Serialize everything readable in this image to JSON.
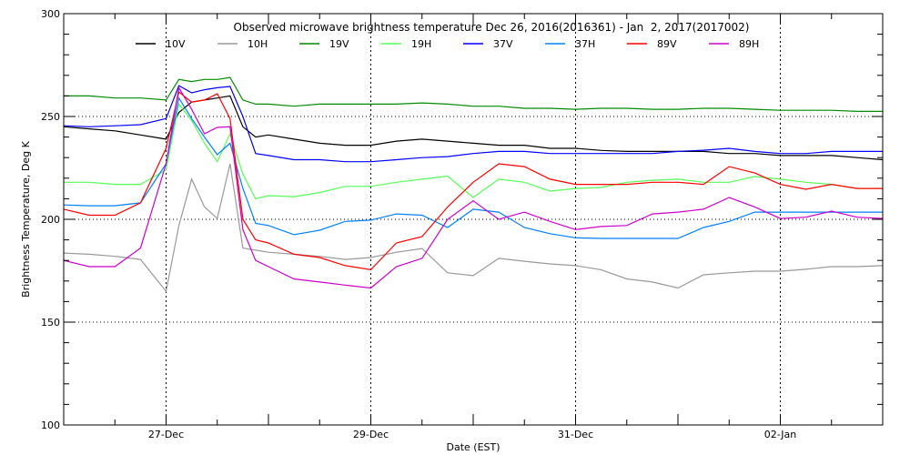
{
  "chart_data": {
    "type": "line",
    "title": "Observed microwave brightness temperature Dec 26, 2016(2016361) - Jan  2, 2017(2017002)",
    "xlabel": "Date (EST)",
    "ylabel": "Brightness Temperature, Deg K",
    "ylim": [
      100,
      300
    ],
    "yticks": [
      100,
      150,
      200,
      250,
      300
    ],
    "xlim": [
      "2016-12-26 00:00",
      "2017-01-03 00:00"
    ],
    "xtick_labels": [
      {
        "date": "2016-12-27 00:00",
        "label": "27-Dec"
      },
      {
        "date": "2016-12-29 00:00",
        "label": "29-Dec"
      },
      {
        "date": "2016-12-31 00:00",
        "label": "31-Dec"
      },
      {
        "date": "2017-01-02 00:00",
        "label": "02-Jan"
      }
    ],
    "grid": "dotted at 150, 200, 250 and at labeled dates",
    "legend_placement": "top",
    "x": [
      "2016-12-26 00:00",
      "2016-12-26 06:00",
      "2016-12-26 12:00",
      "2016-12-26 18:00",
      "2016-12-27 00:00",
      "2016-12-27 03:00",
      "2016-12-27 06:00",
      "2016-12-27 09:00",
      "2016-12-27 12:00",
      "2016-12-27 15:00",
      "2016-12-27 18:00",
      "2016-12-27 21:00",
      "2016-12-28 00:00",
      "2016-12-28 06:00",
      "2016-12-28 12:00",
      "2016-12-28 18:00",
      "2016-12-29 00:00",
      "2016-12-29 06:00",
      "2016-12-29 12:00",
      "2016-12-29 18:00",
      "2016-12-30 00:00",
      "2016-12-30 06:00",
      "2016-12-30 12:00",
      "2016-12-30 18:00",
      "2016-12-31 00:00",
      "2016-12-31 06:00",
      "2016-12-31 12:00",
      "2016-12-31 18:00",
      "2017-01-01 00:00",
      "2017-01-01 06:00",
      "2017-01-01 12:00",
      "2017-01-01 18:00",
      "2017-01-02 00:00",
      "2017-01-02 06:00",
      "2017-01-02 12:00",
      "2017-01-02 18:00",
      "2017-01-03 00:00"
    ],
    "series": [
      {
        "name": "10V",
        "color": "#000000",
        "values": [
          245,
          244,
          243,
          241,
          239,
          252,
          257,
          258,
          259,
          260,
          245,
          240,
          241,
          239,
          237,
          236,
          236,
          238,
          239,
          238,
          237,
          236,
          236,
          234.5,
          234.5,
          233.5,
          233,
          233,
          233,
          233,
          232,
          232,
          231,
          231,
          231,
          230,
          229
        ]
      },
      {
        "name": "10H",
        "color": "#999999",
        "values": [
          183.6,
          183,
          182,
          180.5,
          165,
          197,
          219.5,
          206,
          200.4,
          227,
          186,
          185,
          184,
          183,
          182,
          180.5,
          181.4,
          184,
          185.8,
          174,
          172.6,
          181,
          179.6,
          178.3,
          177.5,
          175.5,
          171,
          169.5,
          166.6,
          173,
          174,
          174.8,
          174.8,
          175.7,
          177,
          177,
          177.5
        ]
      },
      {
        "name": "19V",
        "color": "#008c00",
        "values": [
          260,
          260,
          259,
          259,
          258,
          268,
          267,
          268,
          268,
          269,
          258,
          256,
          256,
          255,
          256,
          256,
          256,
          256,
          256.6,
          256,
          255,
          255,
          254,
          254,
          253.5,
          254,
          254,
          253.5,
          253.5,
          254,
          254,
          253.5,
          253,
          253,
          253,
          252.5,
          252.5
        ]
      },
      {
        "name": "19H",
        "color": "#55ff55",
        "values": [
          218,
          218,
          217,
          217,
          224,
          256,
          248,
          237,
          228,
          241.6,
          222,
          210,
          211.5,
          211,
          213,
          216,
          216,
          218,
          219.5,
          221,
          210.6,
          219.5,
          218,
          213.7,
          215,
          215.5,
          218,
          219,
          219.5,
          218,
          218,
          220.8,
          219.5,
          218,
          217,
          215,
          215
        ]
      },
      {
        "name": "37V",
        "color": "#0000ff",
        "values": [
          245.5,
          245,
          245.5,
          246,
          249,
          265,
          261.5,
          263,
          264,
          264.6,
          250,
          232,
          231,
          229,
          229,
          228,
          228,
          229,
          230,
          230.5,
          232,
          233,
          233,
          232,
          232,
          232,
          232,
          232,
          233,
          233.6,
          234.5,
          233,
          232,
          232,
          233,
          233,
          233
        ]
      },
      {
        "name": "37H",
        "color": "#0080ff",
        "values": [
          207,
          206.6,
          206.6,
          208,
          227,
          259,
          249,
          240,
          231.4,
          237,
          215,
          198,
          197,
          192.5,
          194.7,
          199,
          199.6,
          202.6,
          202,
          196,
          204.9,
          203.5,
          196,
          193,
          191,
          190.7,
          190.7,
          190.7,
          190.7,
          196,
          199,
          203.5,
          203.5,
          203.5,
          203.5,
          203.5,
          203.5
        ]
      },
      {
        "name": "89V",
        "color": "#ff0000",
        "values": [
          204.9,
          202,
          202,
          208,
          234.5,
          262,
          257,
          258,
          261,
          249,
          200,
          190,
          188.5,
          183,
          181.4,
          177.5,
          175.5,
          188.5,
          191.6,
          206,
          218,
          227,
          225.6,
          219.5,
          217,
          217,
          217,
          218,
          218,
          217,
          225.6,
          222.5,
          217,
          214.6,
          217,
          215,
          215
        ]
      },
      {
        "name": "89H",
        "color": "#cc00cc",
        "values": [
          180,
          177,
          177,
          186,
          227,
          264,
          253.5,
          241.6,
          244.7,
          245,
          195,
          180,
          177,
          171,
          169.5,
          168,
          166.6,
          177,
          181,
          200,
          209,
          200,
          203.5,
          199,
          195,
          196.5,
          197,
          202.6,
          203.5,
          204.9,
          210.6,
          206,
          200.4,
          201,
          204,
          201,
          200.4
        ]
      }
    ]
  }
}
